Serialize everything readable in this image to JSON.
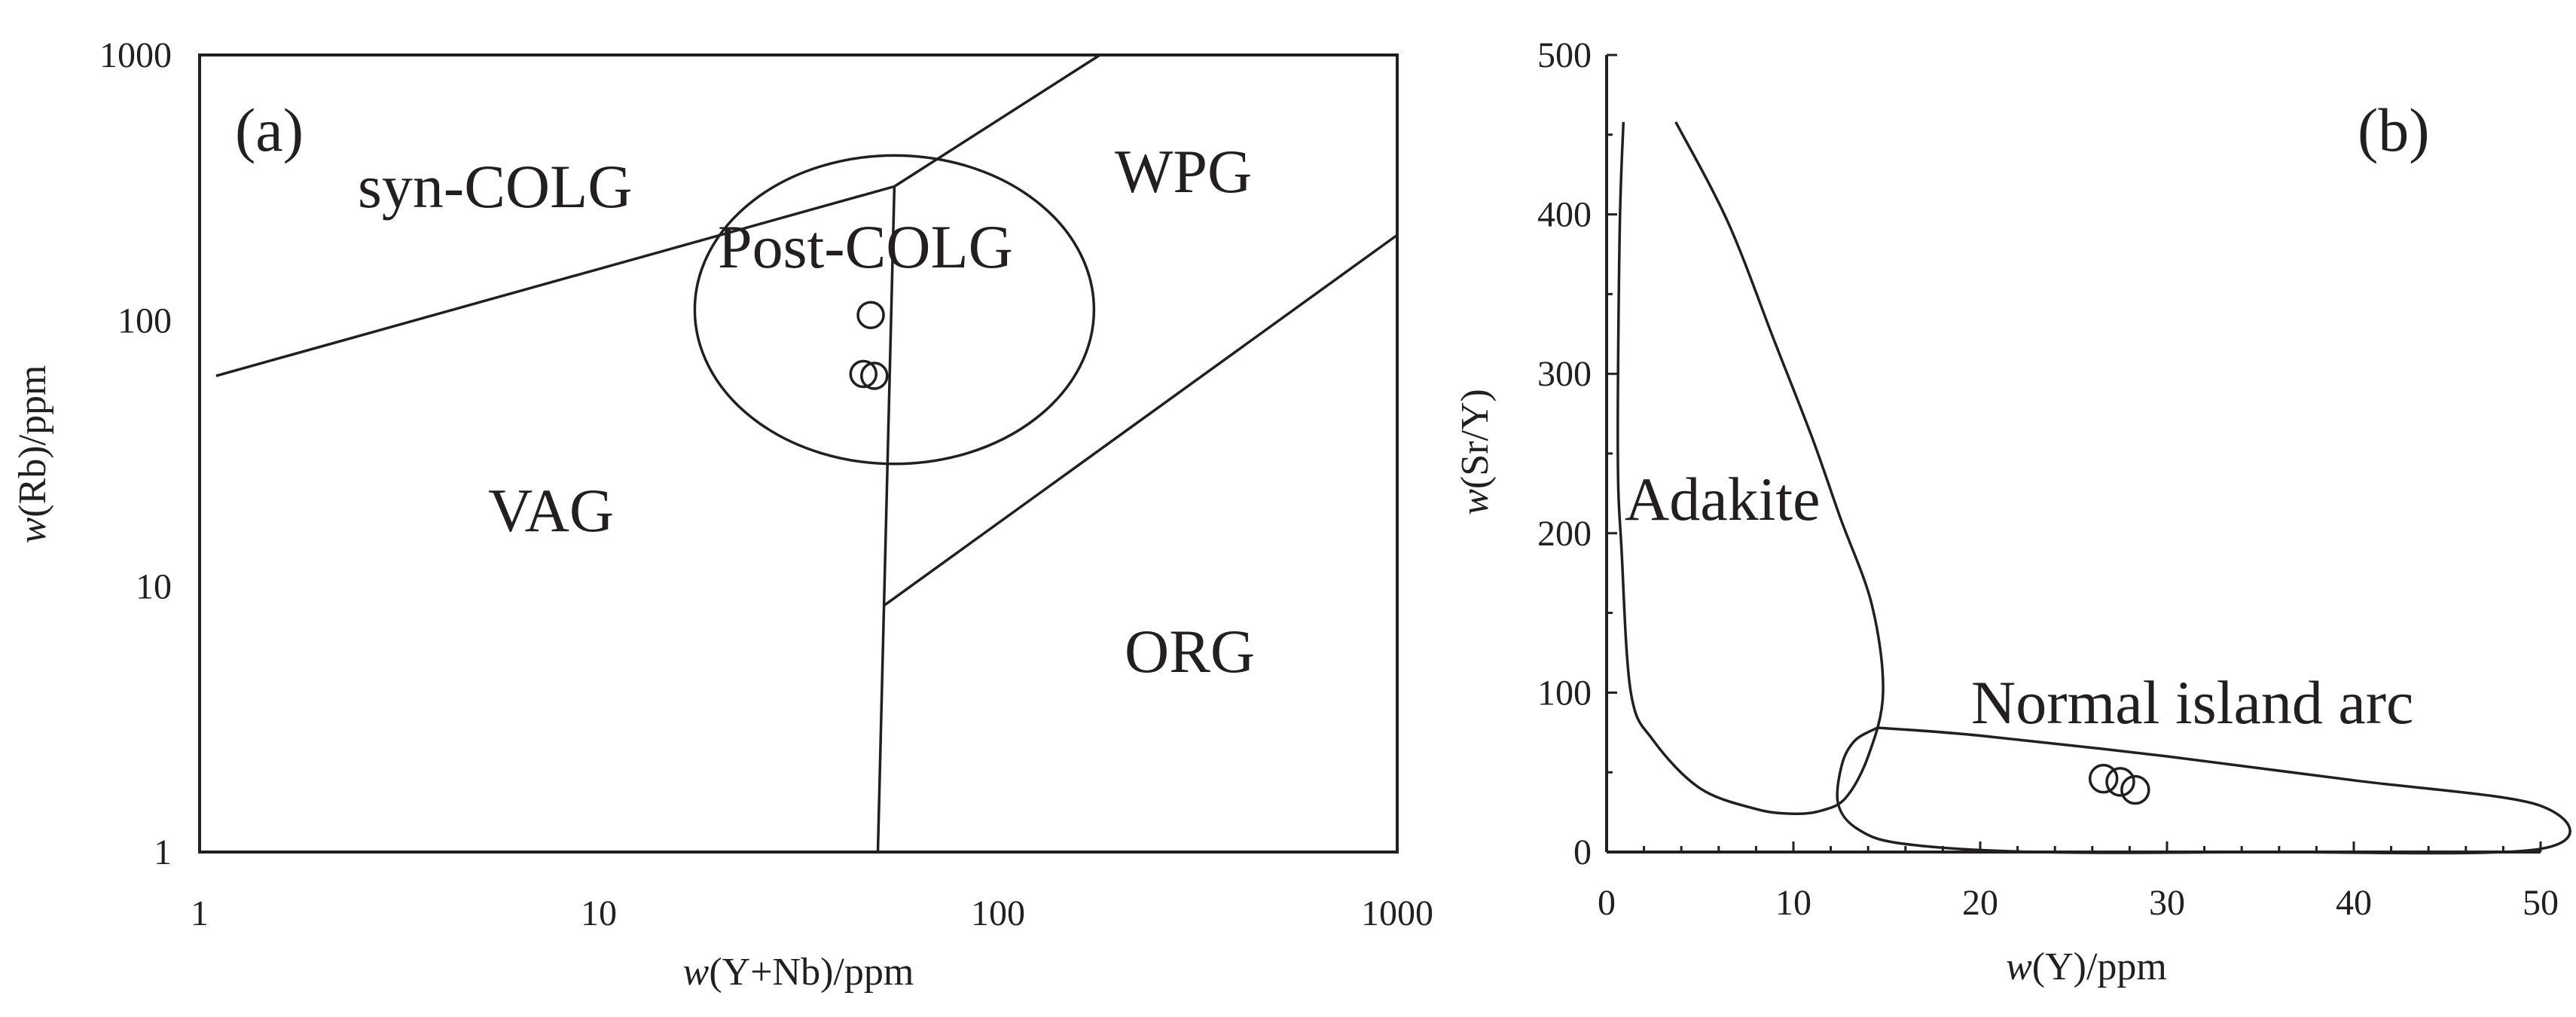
{
  "chart_data": [
    {
      "panel": "(a)",
      "type": "scatter",
      "scale": "log-log",
      "xlabel_italic": "w",
      "xlabel_rest": "(Y+Nb)/ppm",
      "ylabel_italic": "w",
      "ylabel_rest": "(Rb)/ppm",
      "xlim": [
        1,
        1000
      ],
      "ylim": [
        1,
        1000
      ],
      "x_ticks": [
        1,
        10,
        100,
        1000
      ],
      "x_tick_labels": [
        "1",
        "10",
        "100",
        "1000"
      ],
      "y_ticks": [
        1,
        10,
        100,
        1000
      ],
      "y_tick_labels": [
        "1",
        "10",
        "100",
        "1000"
      ],
      "field_labels": [
        "syn-COLG",
        "Post-COLG",
        "WPG",
        "VAG",
        "ORG"
      ],
      "boundaries": [
        {
          "name": "syn-COLG / VAG",
          "points": [
            [
              1.1,
              62
            ],
            [
              55,
              320
            ]
          ]
        },
        {
          "name": "syn-COLG / WPG",
          "points": [
            [
              55,
              320
            ],
            [
              180,
              1000
            ]
          ]
        },
        {
          "name": "VAG / WPG-ORG",
          "points": [
            [
              55,
              320
            ],
            [
              50,
              1
            ]
          ]
        },
        {
          "name": "WPG / ORG",
          "points": [
            [
              52,
              8.5
            ],
            [
              1000,
              210
            ]
          ]
        }
      ],
      "post_colg_field": {
        "center": [
          55,
          110
        ],
        "x_range": [
          16,
          160
        ],
        "y_range": [
          29,
          420
        ]
      },
      "samples": [
        {
          "x": 48,
          "y": 105
        },
        {
          "x": 46,
          "y": 63
        },
        {
          "x": 49,
          "y": 62
        }
      ]
    },
    {
      "panel": "(b)",
      "type": "scatter",
      "scale": "linear",
      "xlabel_italic": "w",
      "xlabel_rest": "(Y)/ppm",
      "ylabel_italic": "w",
      "ylabel_rest": "(Sr/Y)",
      "xlim": [
        0,
        50
      ],
      "ylim": [
        0,
        500
      ],
      "x_ticks": [
        0,
        10,
        20,
        30,
        40,
        50
      ],
      "x_tick_labels": [
        "0",
        "10",
        "20",
        "30",
        "40",
        "50"
      ],
      "y_ticks": [
        0,
        100,
        200,
        300,
        400,
        500
      ],
      "y_tick_labels": [
        "0",
        "100",
        "200",
        "300",
        "400",
        "500"
      ],
      "field_labels": [
        "Adakite",
        "Normal island arc"
      ],
      "adakite_field": [
        [
          0.9,
          458
        ],
        [
          0.7,
          390
        ],
        [
          0.6,
          250
        ],
        [
          0.8,
          190
        ],
        [
          1.3,
          100
        ],
        [
          2.5,
          70
        ],
        [
          5,
          40
        ],
        [
          8,
          27
        ],
        [
          10,
          24
        ],
        [
          11.5,
          26
        ],
        [
          12.8,
          34
        ],
        [
          14,
          60
        ],
        [
          14.8,
          100
        ],
        [
          14.2,
          155
        ],
        [
          12.5,
          210
        ],
        [
          11,
          260
        ],
        [
          9,
          320
        ],
        [
          6.5,
          395
        ],
        [
          3.7,
          458
        ]
      ],
      "arc_field": [
        [
          14.5,
          78
        ],
        [
          20,
          73
        ],
        [
          30,
          60
        ],
        [
          40,
          45
        ],
        [
          50,
          29
        ],
        [
          50,
          2
        ],
        [
          35,
          0
        ],
        [
          23,
          0
        ],
        [
          16,
          5
        ],
        [
          13.5,
          14
        ],
        [
          12.4,
          30
        ],
        [
          12.6,
          55
        ],
        [
          13.3,
          70
        ],
        [
          14.5,
          78
        ]
      ],
      "samples": [
        {
          "x": 26.6,
          "y": 46
        },
        {
          "x": 27.5,
          "y": 44
        },
        {
          "x": 28.3,
          "y": 39
        }
      ]
    }
  ]
}
